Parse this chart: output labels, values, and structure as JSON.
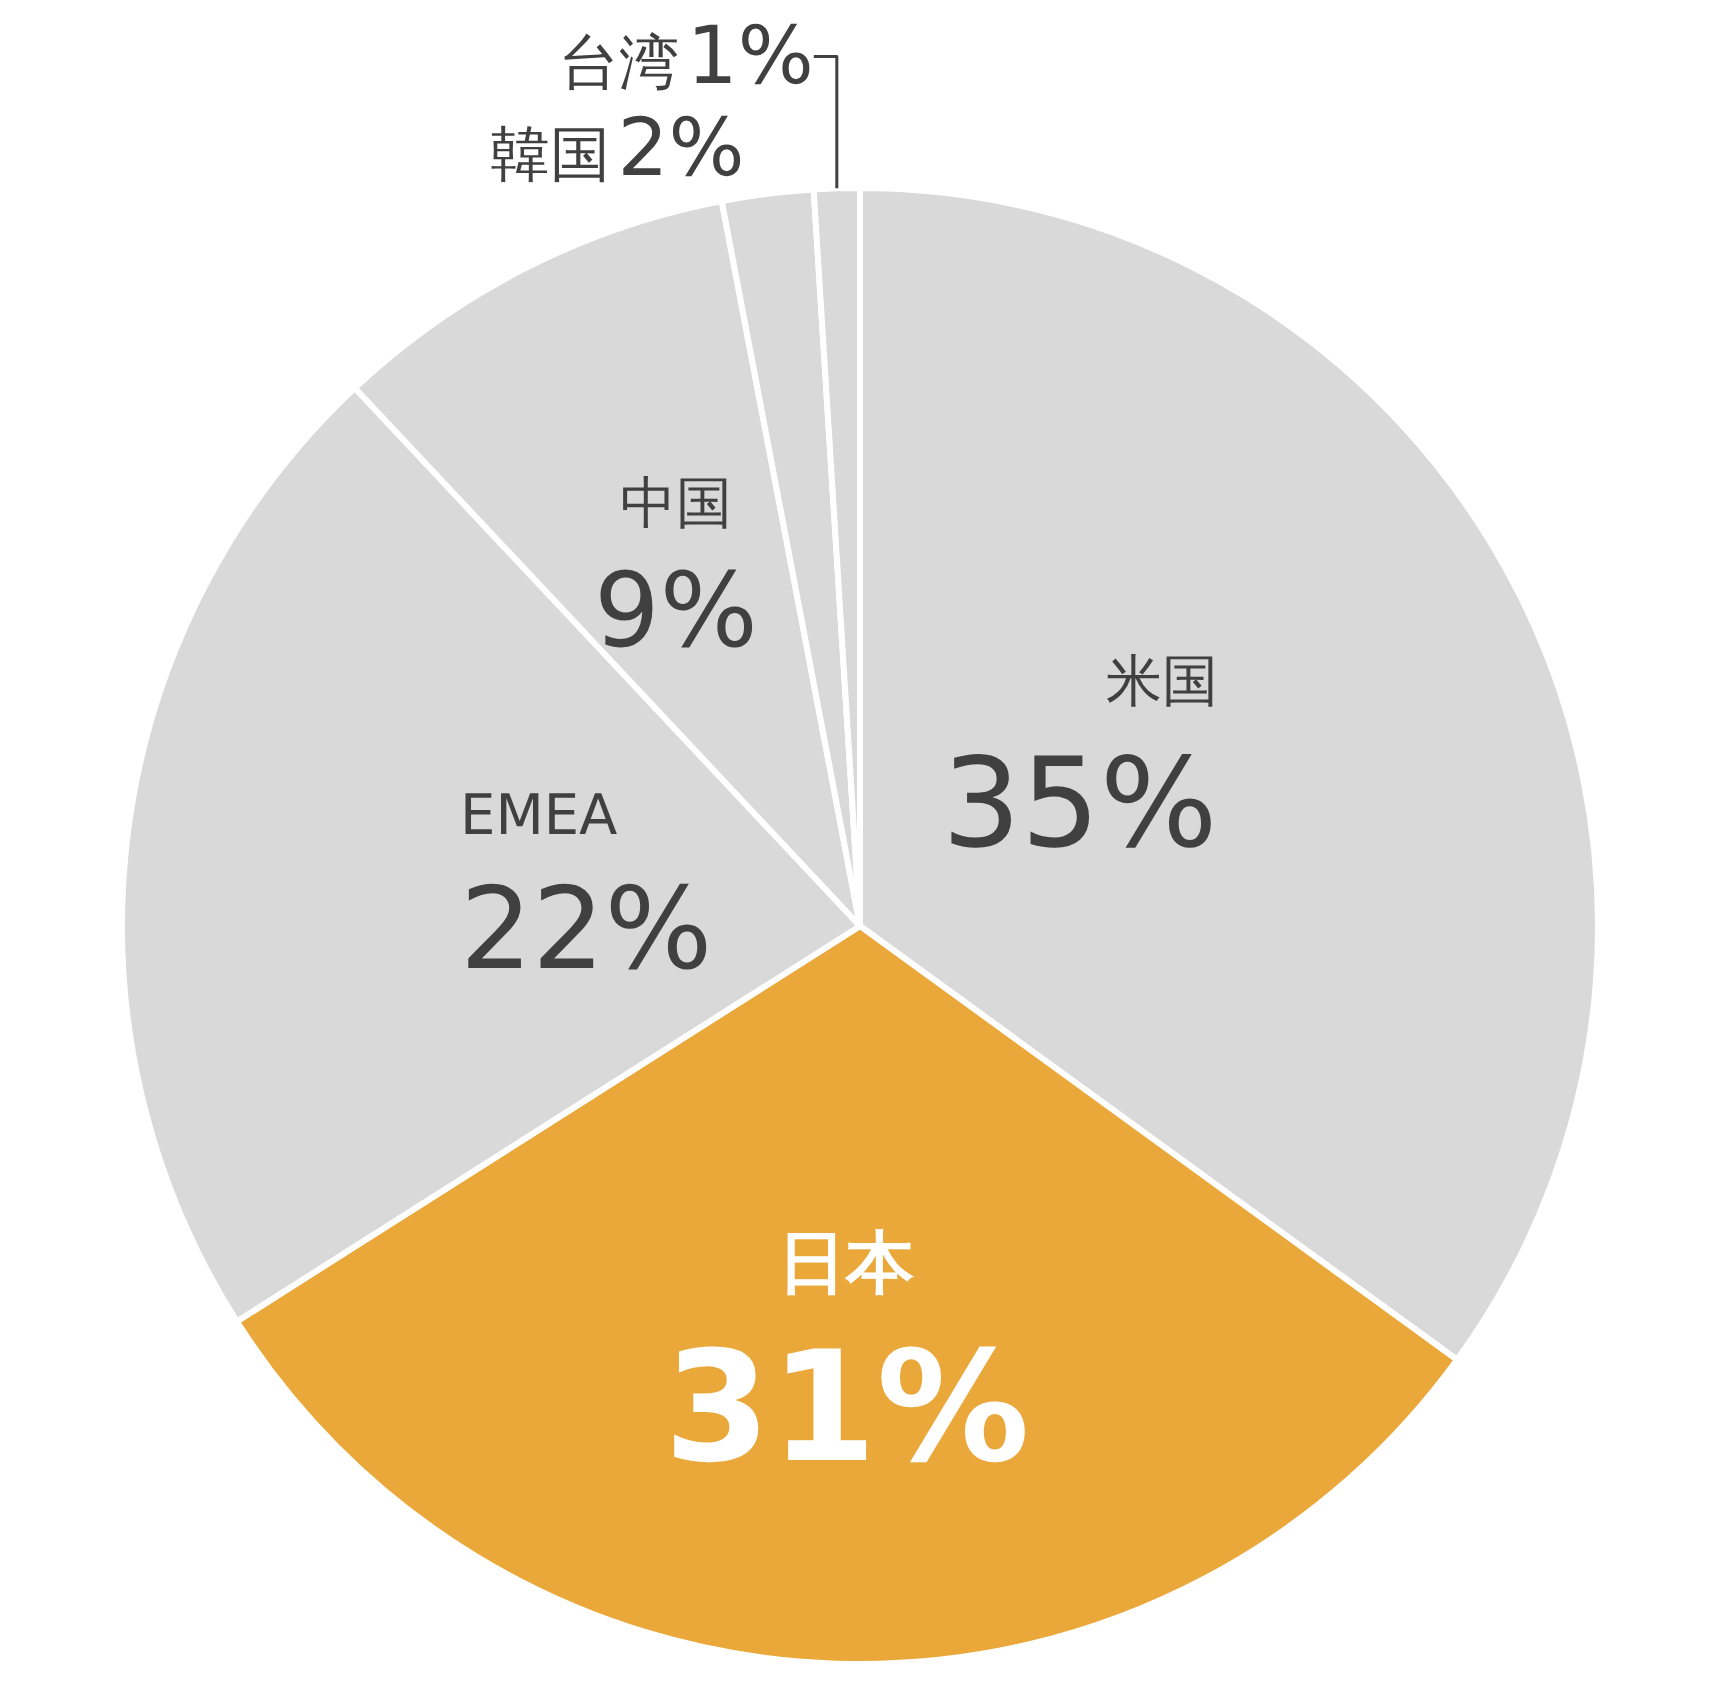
{
  "chart_data": {
    "type": "pie",
    "categories": [
      "米国",
      "日本",
      "EMEA",
      "中国",
      "韓国",
      "台湾"
    ],
    "values": [
      35,
      31,
      22,
      9,
      2,
      1
    ],
    "value_labels": [
      "35%",
      "31%",
      "22%",
      "9%",
      "2%",
      "1%"
    ],
    "colors": [
      "#d9d9d9",
      "#eba83a",
      "#d9d9d9",
      "#d9d9d9",
      "#d9d9d9",
      "#d9d9d9"
    ],
    "legend": false
  }
}
